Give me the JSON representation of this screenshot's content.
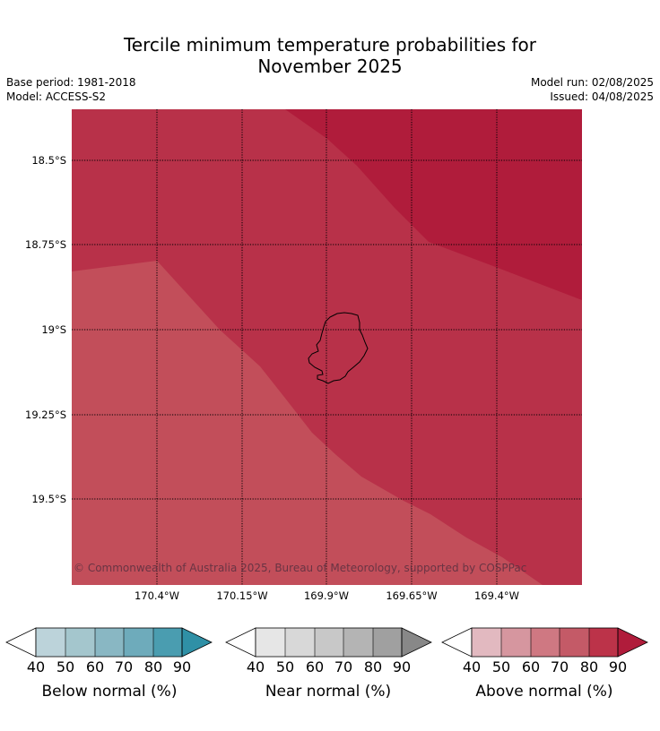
{
  "title_line1": "Tercile minimum temperature probabilities for",
  "title_line2": "November 2025",
  "base_period": "Base period: 1981-2018",
  "model": "Model: ACCESS-S2",
  "model_run": "Model run: 02/08/2025",
  "issued": "Issued: 04/08/2025",
  "copyright": "© Commonwealth of Australia 2025, Bureau of Meteorology, supported by COSPPac",
  "lat_labels": [
    "18.5°S",
    "18.75°S",
    "19°S",
    "19.25°S",
    "19.5°S"
  ],
  "lon_labels": [
    "170.4°W",
    "170.15°W",
    "169.9°W",
    "169.65°W",
    "169.4°W"
  ],
  "colors": {
    "above_70_80": "#c24e5a",
    "above_80_90": "#b83149",
    "above_90": "#b01c3b",
    "coast": "#000000"
  },
  "colorbars": [
    {
      "title": "Below normal (%)",
      "ticks": [
        "40",
        "50",
        "60",
        "70",
        "80",
        "90"
      ],
      "colors": [
        "#bcd3da",
        "#a4c6cd",
        "#89b7c3",
        "#6eabbb",
        "#4a9db0",
        "#2f90a6"
      ]
    },
    {
      "title": "Near normal (%)",
      "ticks": [
        "40",
        "50",
        "60",
        "70",
        "80",
        "90"
      ],
      "colors": [
        "#e6e6e6",
        "#d8d8d8",
        "#c8c8c8",
        "#b4b4b4",
        "#a0a0a0",
        "#888888"
      ]
    },
    {
      "title": "Above normal (%)",
      "ticks": [
        "40",
        "50",
        "60",
        "70",
        "80",
        "90"
      ],
      "colors": [
        "#e2b9c0",
        "#d6969f",
        "#cf7882",
        "#c45a67",
        "#bc3349",
        "#b01c3b"
      ]
    }
  ]
}
